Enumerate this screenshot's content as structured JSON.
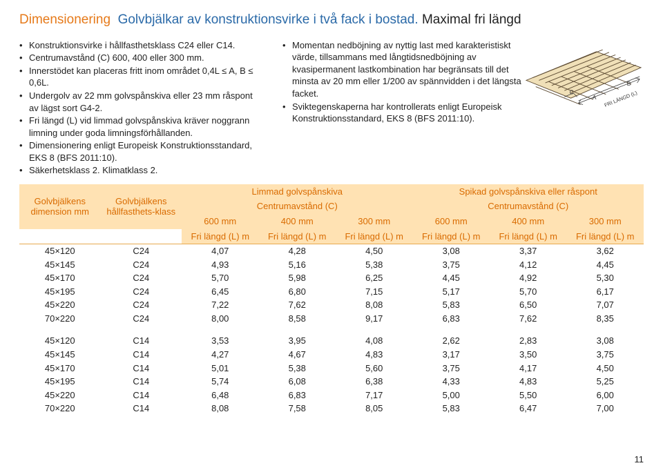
{
  "title": {
    "part1": "Dimensionering",
    "part2": "Golvbjälkar av konstruktionsvirke i två fack i bostad.",
    "part3": "Maximal fri längd"
  },
  "left_bullets": [
    "Konstruktionsvirke i hållfasthetsklass C24 eller C14.",
    "Centrumavstånd (C) 600, 400 eller 300 mm.",
    "Innerstödet kan placeras fritt inom området 0,4L ≤ A, B ≤ 0,6L.",
    "Undergolv av 22 mm golvspånskiva eller 23 mm råspont av lägst sort G4-2.",
    "Fri längd (L) vid limmad golvspånskiva kräver noggrann limning under goda limningsförhållanden.",
    "Dimensionering enligt Europeisk Konstruktionsstandard, EKS 8 (BFS 2011:10).",
    "Säkerhetsklass 2. Klimatklass 2."
  ],
  "right_bullets": [
    "Momentan nedböjning av nyttig last med karakteristiskt värde, tillsammans med långtidsnedböjning av kvasipermanent lastkombination har begränsats till det minsta av 20 mm eller 1/200 av spännvidden i det längsta facket.",
    "Sviktegenskaperna har kontrollerats enligt Europeisk Konstruktionsstandard, EKS 8 (BFS 2011:10)."
  ],
  "table": {
    "head": {
      "dim": "Golvbjälkens dimension mm",
      "cls": "Golvbjälkens hållfasthets-klass",
      "grpA": "Limmad golvspånskiva",
      "grpB": "Spikad golvspånskiva eller råspont",
      "sub": "Centrumavstånd (C)",
      "c600": "600 mm",
      "c400": "400 mm",
      "c300": "300 mm",
      "free": "Fri längd (L) m"
    },
    "rows_c24": [
      {
        "dim": "45×120",
        "cls": "C24",
        "v": [
          "4,07",
          "4,28",
          "4,50",
          "3,08",
          "3,37",
          "3,62"
        ]
      },
      {
        "dim": "45×145",
        "cls": "C24",
        "v": [
          "4,93",
          "5,16",
          "5,38",
          "3,75",
          "4,12",
          "4,45"
        ]
      },
      {
        "dim": "45×170",
        "cls": "C24",
        "v": [
          "5,70",
          "5,98",
          "6,25",
          "4,45",
          "4,92",
          "5,30"
        ]
      },
      {
        "dim": "45×195",
        "cls": "C24",
        "v": [
          "6,45",
          "6,80",
          "7,15",
          "5,17",
          "5,70",
          "6,17"
        ]
      },
      {
        "dim": "45×220",
        "cls": "C24",
        "v": [
          "7,22",
          "7,62",
          "8,08",
          "5,83",
          "6,50",
          "7,07"
        ]
      },
      {
        "dim": "70×220",
        "cls": "C24",
        "v": [
          "8,00",
          "8,58",
          "9,17",
          "6,83",
          "7,62",
          "8,35"
        ]
      }
    ],
    "rows_c14": [
      {
        "dim": "45×120",
        "cls": "C14",
        "v": [
          "3,53",
          "3,95",
          "4,08",
          "2,62",
          "2,83",
          "3,08"
        ]
      },
      {
        "dim": "45×145",
        "cls": "C14",
        "v": [
          "4,27",
          "4,67",
          "4,83",
          "3,17",
          "3,50",
          "3,75"
        ]
      },
      {
        "dim": "45×170",
        "cls": "C14",
        "v": [
          "5,01",
          "5,38",
          "5,60",
          "3,75",
          "4,17",
          "4,50"
        ]
      },
      {
        "dim": "45×195",
        "cls": "C14",
        "v": [
          "5,74",
          "6,08",
          "6,38",
          "4,33",
          "4,83",
          "5,25"
        ]
      },
      {
        "dim": "45×220",
        "cls": "C14",
        "v": [
          "6,48",
          "6,83",
          "7,17",
          "5,00",
          "5,50",
          "6,00"
        ]
      },
      {
        "dim": "70×220",
        "cls": "C14",
        "v": [
          "8,08",
          "7,58",
          "8,05",
          "5,83",
          "6,47",
          "7,00"
        ]
      }
    ]
  },
  "diagram_labels": {
    "A": "A",
    "B": "B",
    "C": "C",
    "L": "FRI LÄNGD (L)"
  },
  "page_number": "11"
}
